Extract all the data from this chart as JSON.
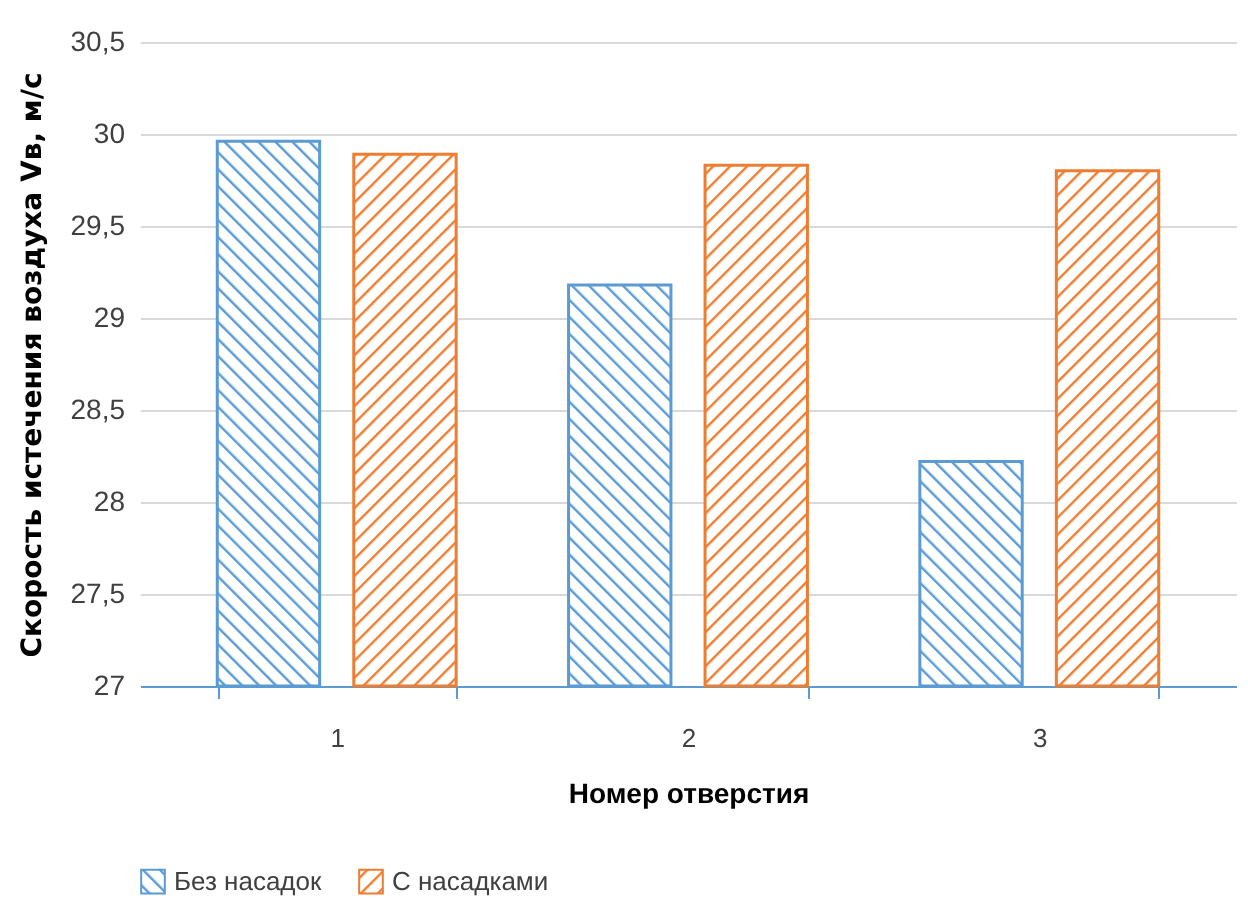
{
  "chart_data": {
    "type": "bar",
    "xlabel": "Номер отверстия",
    "ylabel": "Скорость истечения воздуха Vв, м/с",
    "categories": [
      "1",
      "2",
      "3"
    ],
    "series": [
      {
        "name": "Без насадок",
        "color": "#5b9bd5",
        "values": [
          29.96,
          29.18,
          28.22
        ]
      },
      {
        "name": "С насадками",
        "color": "#ed7d31",
        "values": [
          29.89,
          29.83,
          29.8
        ]
      }
    ],
    "ylim": [
      27,
      30.5
    ],
    "yticks": [
      {
        "value": 27,
        "label": "27"
      },
      {
        "value": 27.5,
        "label": "27,5"
      },
      {
        "value": 28,
        "label": "28"
      },
      {
        "value": 28.5,
        "label": "28,5"
      },
      {
        "value": 29,
        "label": "29"
      },
      {
        "value": 29.5,
        "label": "29,5"
      },
      {
        "value": 30,
        "label": "30"
      },
      {
        "value": 30.5,
        "label": "30,5"
      }
    ],
    "grid": "y",
    "legend": "bottom"
  }
}
